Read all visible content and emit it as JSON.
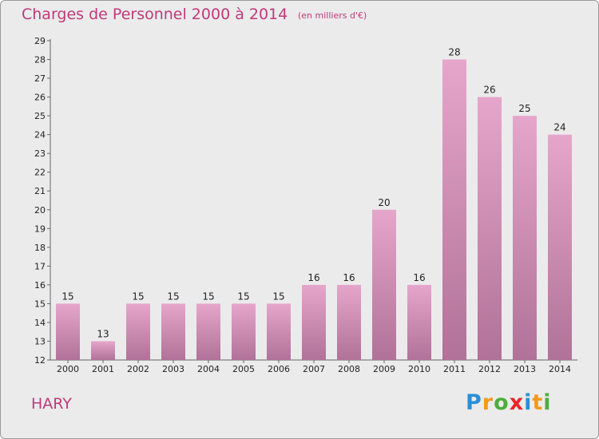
{
  "header": {
    "title": "Charges de Personnel 2000 à 2014",
    "unit_note": "(en milliers d'€)"
  },
  "footer": {
    "place_name": "HARY",
    "brand": [
      "P",
      "r",
      "o",
      "x",
      "i",
      "t",
      "i"
    ]
  },
  "colors": {
    "title": "#c0397a",
    "bar_top": "#e6a6cc",
    "bar_bottom": "#b07298",
    "background": "#ebebeb",
    "brand": [
      "#2b8fd6",
      "#f29a1a",
      "#4cae3a",
      "#e8262b",
      "#2b8fd6",
      "#f29a1a",
      "#4cae3a"
    ]
  },
  "chart_data": {
    "type": "bar",
    "categories": [
      "2000",
      "2001",
      "2002",
      "2003",
      "2004",
      "2005",
      "2006",
      "2007",
      "2008",
      "2009",
      "2010",
      "2011",
      "2012",
      "2013",
      "2014"
    ],
    "values": [
      15,
      13,
      15,
      15,
      15,
      15,
      15,
      16,
      16,
      20,
      16,
      28,
      26,
      25,
      24
    ],
    "ylim": [
      12,
      29
    ],
    "yticks": [
      12,
      13,
      14,
      15,
      16,
      17,
      18,
      19,
      20,
      21,
      22,
      23,
      24,
      25,
      26,
      27,
      28,
      29
    ],
    "grid": false,
    "legend": "none"
  }
}
